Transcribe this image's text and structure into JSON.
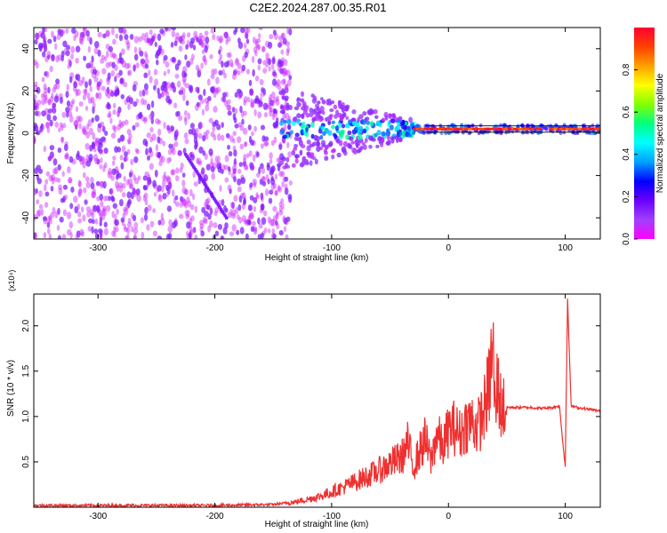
{
  "title": "C2E2.2024.287.00.35.R01",
  "chart_data": [
    {
      "type": "heatmap",
      "xlabel": "Height of straight line (km)",
      "ylabel": "Frequency (Hz)",
      "xlim": [
        -355,
        130
      ],
      "ylim": [
        -50,
        50
      ],
      "xticks": [
        -300,
        -200,
        -100,
        0,
        100
      ],
      "yticks": [
        -40,
        -20,
        0,
        20,
        40
      ],
      "colorbar": {
        "label": "Normalized spectral amplitude",
        "range": [
          0.0,
          1.0
        ],
        "ticks": [
          0.0,
          0.2,
          0.4,
          0.6,
          0.8
        ],
        "colormap": [
          "#ff00ff",
          "#a040ff",
          "#6a00ff",
          "#0000ff",
          "#00a0ff",
          "#00ffff",
          "#00ff80",
          "#80ff00",
          "#ffff00",
          "#ffa000",
          "#ff4000",
          "#ff0030"
        ]
      },
      "features": {
        "noise_region_km": [
          -355,
          -145
        ],
        "diagonal_track": {
          "from": [
            -225,
            -10
          ],
          "to": [
            -190,
            -40
          ]
        },
        "transition_km": [
          -145,
          -30
        ],
        "signal_frequency_hz": 2,
        "signal_region_km": [
          -30,
          130
        ]
      }
    },
    {
      "type": "line",
      "xlabel": "Height of straight line (km)",
      "ylabel": "SNR (10 * v/v)",
      "multiplier": "(x10⁴)",
      "xlim": [
        -355,
        130
      ],
      "ylim": [
        0,
        2.35
      ],
      "xticks": [
        -300,
        -200,
        -100,
        0,
        100
      ],
      "yticks": [
        0.5,
        1.0,
        1.5,
        2.0
      ],
      "series": [
        {
          "color": "#ee3030",
          "x": [
            -355,
            -300,
            -200,
            -150,
            -130,
            -110,
            -100,
            -90,
            -80,
            -70,
            -60,
            -50,
            -40,
            -35,
            -30,
            -25,
            -20,
            -15,
            -10,
            -5,
            0,
            5,
            10,
            15,
            20,
            25,
            30,
            35,
            38,
            40,
            42,
            45,
            50,
            60,
            70,
            80,
            90,
            95,
            98,
            100,
            102,
            105,
            110,
            120,
            130
          ],
          "y": [
            0.02,
            0.02,
            0.02,
            0.03,
            0.06,
            0.12,
            0.17,
            0.22,
            0.28,
            0.34,
            0.4,
            0.48,
            0.55,
            0.7,
            0.45,
            0.6,
            0.75,
            0.5,
            0.82,
            0.65,
            0.85,
            0.88,
            0.8,
            0.92,
            0.95,
            0.88,
            1.05,
            1.35,
            1.8,
            1.0,
            1.4,
            1.1,
            1.1,
            1.1,
            1.1,
            1.09,
            1.1,
            1.12,
            0.7,
            0.45,
            2.3,
            1.12,
            1.1,
            1.08,
            1.06
          ]
        }
      ]
    }
  ]
}
